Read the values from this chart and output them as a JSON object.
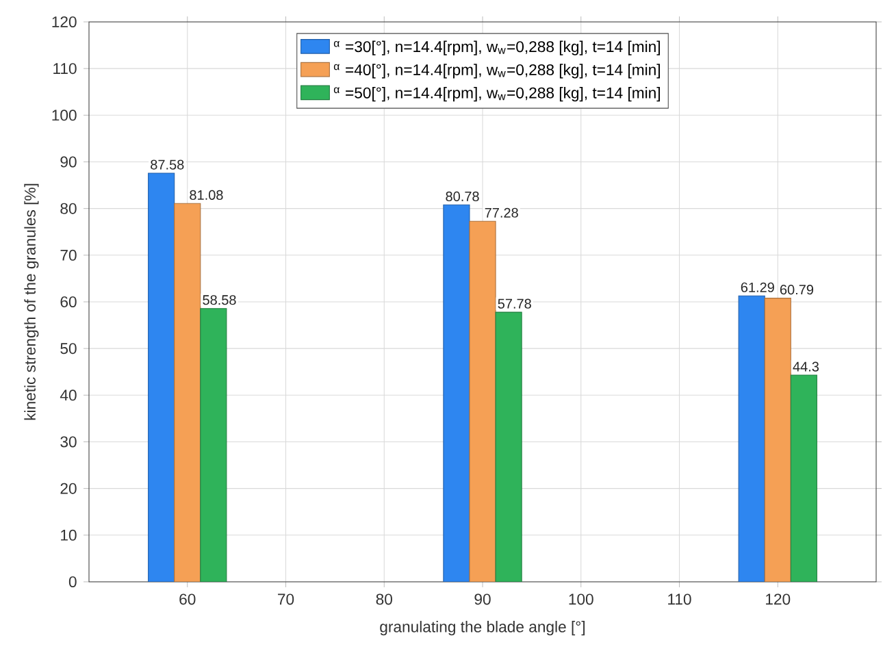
{
  "chart_data": {
    "type": "bar",
    "xlabel": "granulating the blade angle [°]",
    "ylabel": "kinetic strength of the granules [%]",
    "x": [
      60,
      90,
      120
    ],
    "series": [
      {
        "name": "$^{α}$ =30[°], n=14.4[rpm], w$_{w}$=0,288 [kg], t=14  [min]",
        "color": "#2e86f0",
        "values": [
          87.58,
          80.78,
          61.29
        ]
      },
      {
        "name": "$^{α}$ =40[°], n=14.4[rpm], w$_{w}$=0,288 [kg], t=14  [min]",
        "color": "#f5a055",
        "values": [
          81.08,
          77.28,
          60.79
        ]
      },
      {
        "name": "$^{α}$ =50[°], n=14.4[rpm], w$_{w}$=0,288 [kg], t=14  [min]",
        "color": "#2fb35a",
        "values": [
          58.58,
          57.78,
          44.3
        ]
      }
    ],
    "xlim": [
      50,
      130
    ],
    "xticks": [
      60,
      70,
      80,
      90,
      100,
      110,
      120
    ],
    "ylim": [
      0,
      120
    ],
    "yticks": [
      0,
      10,
      20,
      30,
      40,
      50,
      60,
      70,
      80,
      90,
      100,
      110,
      120
    ],
    "grid": true,
    "legend": "top",
    "data_labels": true
  }
}
